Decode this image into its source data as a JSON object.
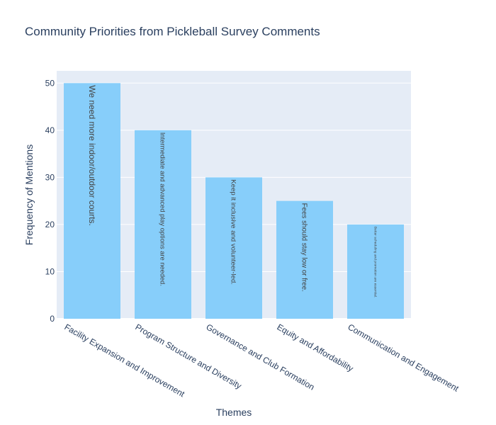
{
  "chart_data": {
    "type": "bar",
    "title": "Community Priorities from Pickleball Survey Comments",
    "xlabel": "Themes",
    "ylabel": "Frequency of Mentions",
    "categories": [
      "Facility Expansion and Improvement",
      "Program Structure and Diversity",
      "Governance and Club Formation",
      "Equity and Affordability",
      "Communication and Engagement"
    ],
    "values": [
      50,
      40,
      30,
      25,
      20
    ],
    "bar_texts": [
      "We need more indoor/outdoor courts.",
      "Intermediate and advanced play options are needed.",
      "Keep it inclusive and volunteer-led.",
      "Fees should stay low or free.",
      "Better scheduling and promotion are essential."
    ],
    "ylim": [
      0,
      52.6
    ],
    "yticks": [
      0,
      10,
      20,
      30,
      40,
      50
    ],
    "grid": true,
    "legend": "none",
    "colors": {
      "bar": "#87CEFA",
      "plot_background": "#E5ECF6",
      "grid": "#ffffff",
      "text": "#2a3f5f",
      "bar_text": "#444444"
    }
  }
}
